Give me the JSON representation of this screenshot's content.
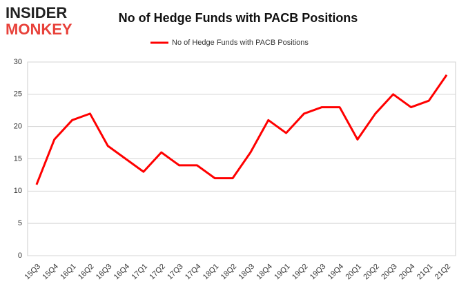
{
  "logo": {
    "line1": "INSIDER",
    "line2": "MONKEY"
  },
  "chart_data": {
    "type": "line",
    "title": "No of Hedge Funds with PACB Positions",
    "categories": [
      "15Q3",
      "15Q4",
      "16Q1",
      "16Q2",
      "16Q3",
      "16Q4",
      "17Q1",
      "17Q2",
      "17Q3",
      "17Q4",
      "18Q1",
      "18Q2",
      "18Q3",
      "18Q4",
      "19Q1",
      "19Q2",
      "19Q3",
      "19Q4",
      "20Q1",
      "20Q2",
      "20Q3",
      "20Q4",
      "21Q1",
      "21Q2"
    ],
    "series": [
      {
        "name": "No of Hedge Funds with PACB Positions",
        "color": "#ff0000",
        "values": [
          11,
          18,
          21,
          22,
          17,
          15,
          13,
          16,
          14,
          14,
          12,
          12,
          16,
          21,
          19,
          22,
          23,
          23,
          18,
          22,
          25,
          23,
          24,
          28
        ]
      }
    ],
    "ylim": [
      0,
      30
    ],
    "yticks": [
      0,
      5,
      10,
      15,
      20,
      25,
      30
    ],
    "grid": true,
    "legend": "top"
  }
}
